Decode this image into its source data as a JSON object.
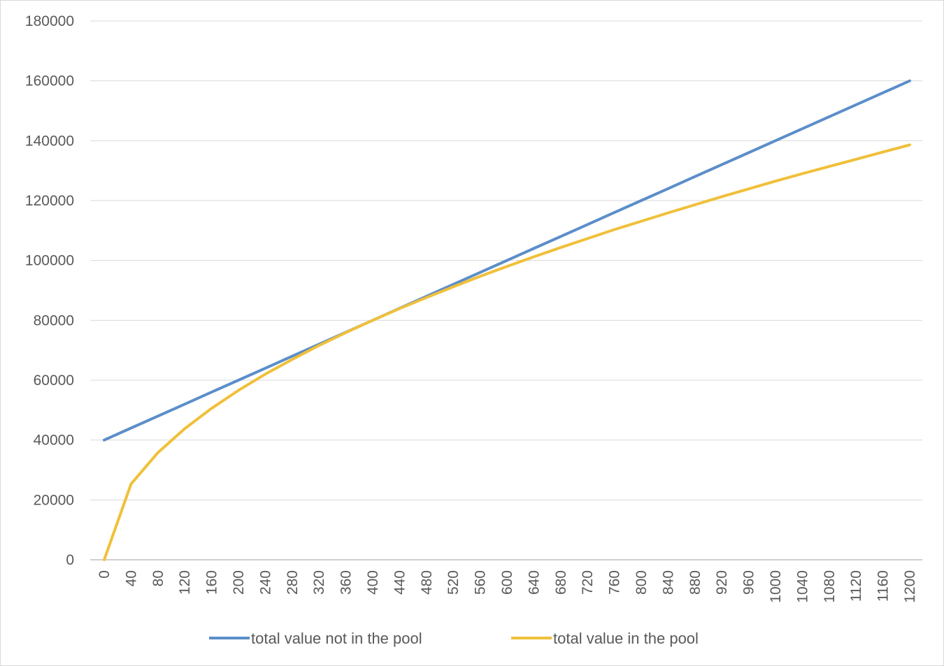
{
  "chart_data": {
    "type": "line",
    "title": "",
    "xlabel": "",
    "ylabel": "",
    "x": [
      0,
      40,
      80,
      120,
      160,
      200,
      240,
      280,
      320,
      360,
      400,
      440,
      480,
      520,
      560,
      600,
      640,
      680,
      720,
      760,
      800,
      840,
      880,
      920,
      960,
      1000,
      1040,
      1080,
      1120,
      1160,
      1200
    ],
    "ylim": [
      0,
      180000
    ],
    "yticks": [
      "0",
      "20000",
      "40000",
      "60000",
      "80000",
      "100000",
      "120000",
      "140000",
      "160000",
      "180000"
    ],
    "xticks": [
      "0",
      "40",
      "80",
      "120",
      "160",
      "200",
      "240",
      "280",
      "320",
      "360",
      "400",
      "440",
      "480",
      "520",
      "560",
      "600",
      "640",
      "680",
      "720",
      "760",
      "800",
      "840",
      "880",
      "920",
      "960",
      "1000",
      "1040",
      "1080",
      "1120",
      "1160",
      "1200"
    ],
    "grid": true,
    "legend_position": "bottom",
    "series": [
      {
        "name": "total value not in the pool",
        "color": "#5b8ec9",
        "values": [
          40000,
          44000,
          48000,
          52000,
          56000,
          60000,
          64000,
          68000,
          72000,
          76000,
          80000,
          84000,
          88000,
          92000,
          96000,
          100000,
          104000,
          108000,
          112000,
          116000,
          120000,
          124000,
          128000,
          132000,
          136000,
          140000,
          144000,
          148000,
          152000,
          156000,
          160000
        ]
      },
      {
        "name": "total value in the pool",
        "color": "#f0c03a",
        "values": [
          0,
          25300,
          35800,
          43800,
          50600,
          56600,
          62000,
          66900,
          71600,
          75900,
          80000,
          83900,
          87600,
          91200,
          94700,
          98000,
          101200,
          104300,
          107300,
          110300,
          113100,
          115900,
          118600,
          121300,
          123900,
          126500,
          129000,
          131400,
          133800,
          136200,
          138600
        ]
      }
    ]
  }
}
